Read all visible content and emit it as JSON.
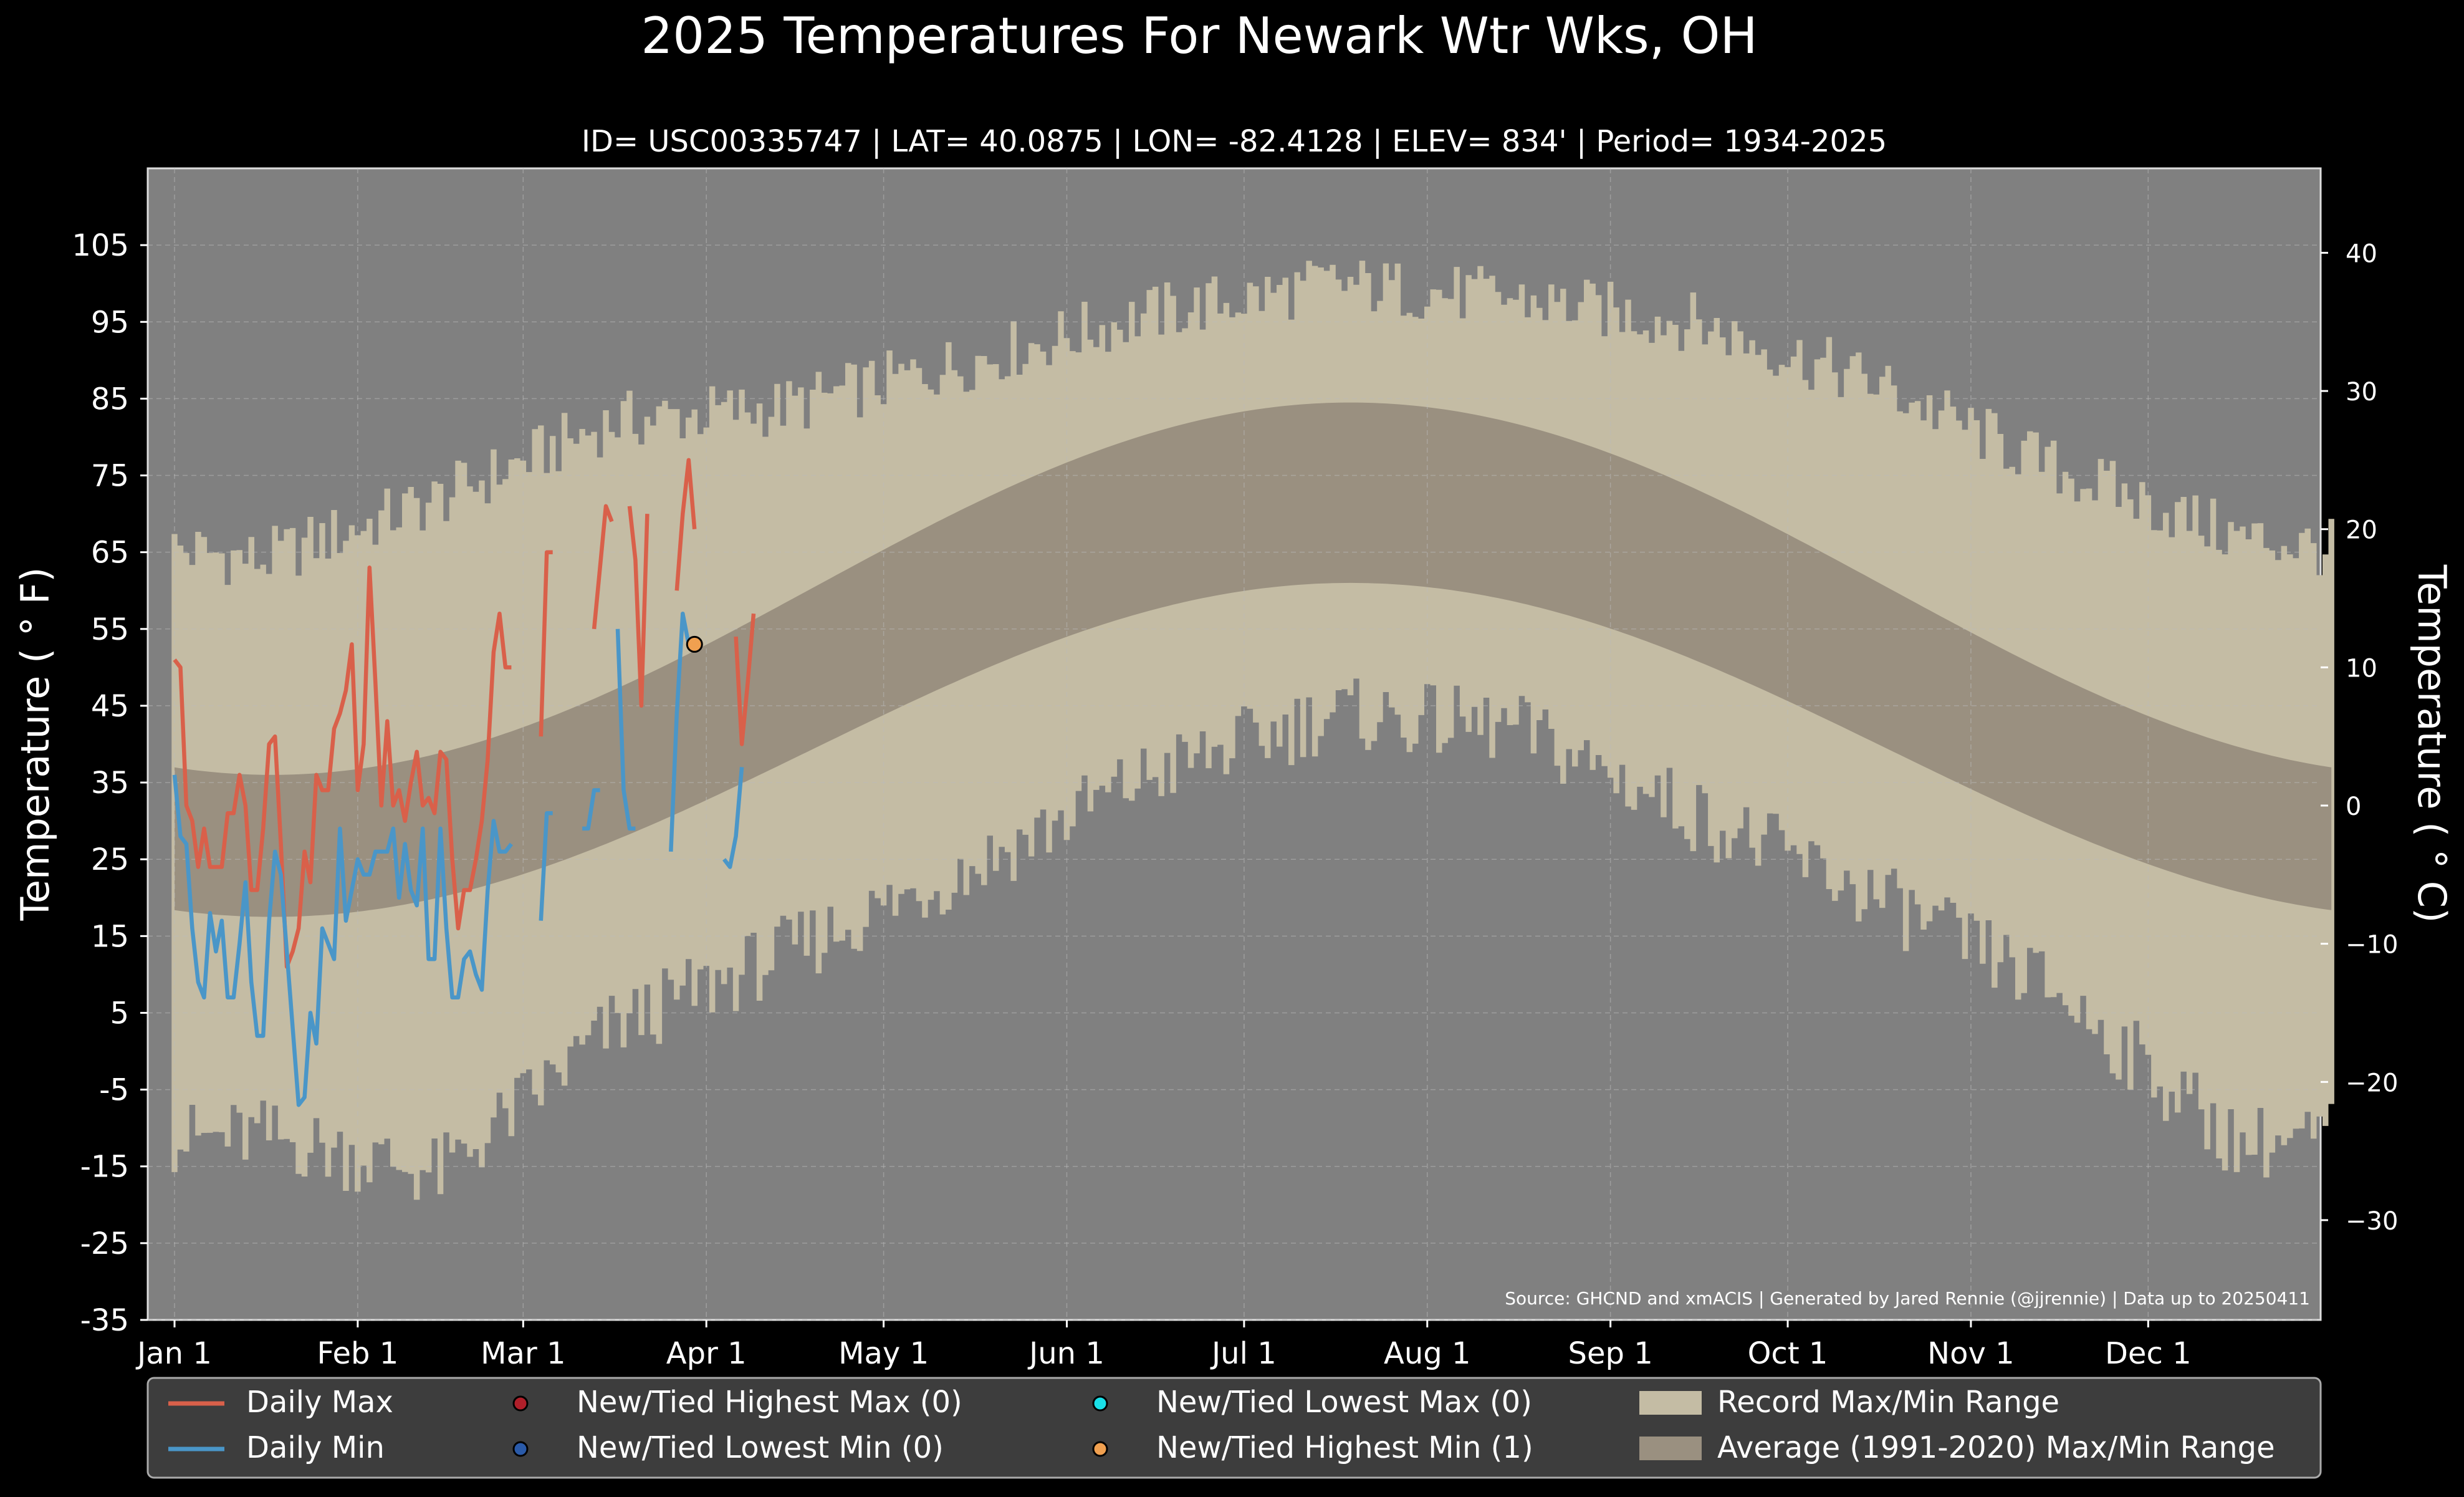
{
  "chart_data": {
    "type": "area",
    "title": "2025 Temperatures For Newark Wtr Wks, OH",
    "subtitle": "ID= USC00335747 | LAT= 40.0875 | LON= -82.4128 | ELEV= 834' | Period= 1934-2025",
    "ylabel": "Temperature ($^\\circ$F)",
    "ylabel_display": "Temperature ( ° F)",
    "ylabel_right": "Temperature ( ° C)",
    "source": "Source: GHCND and xmACIS | Generated by Jared Rennie (@jjrennie) | Data up to 20250411",
    "ylim": [
      -35,
      115
    ],
    "y_ticks": [
      "-35",
      "-25",
      "-15",
      "-5",
      "5",
      "15",
      "25",
      "35",
      "45",
      "55",
      "65",
      "75",
      "85",
      "95",
      "105"
    ],
    "y_ticks_right": [
      "−30",
      "−20",
      "−10",
      "0",
      "10",
      "20",
      "30",
      "40"
    ],
    "x_ticks": [
      "Jan 1",
      "Feb 1",
      "Mar 1",
      "Apr 1",
      "May 1",
      "Jun 1",
      "Jul 1",
      "Aug 1",
      "Sep 1",
      "Oct 1",
      "Nov 1",
      "Dec 1"
    ],
    "grid": true,
    "legend_position": "bottom",
    "legend": [
      "Daily Max",
      "Daily Min",
      "New/Tied Highest Max (0)",
      "New/Tied Lowest Min (0)",
      "New/Tied Lowest Max (0)",
      "New/Tied Highest Min (1)",
      "Record Max/Min Range",
      "Average (1991-2020) Max/Min Range"
    ],
    "colors": {
      "background": "#000000",
      "plot_background": "#808080",
      "record_range": "#c4bca4",
      "normal_range": "#9a9080",
      "daily_max": "#d9604a",
      "daily_min": "#4a96c8",
      "highest_max_marker": "#b01f2a",
      "lowest_min_marker": "#2a5aa8",
      "lowest_max_marker": "#19e0e8",
      "highest_min_marker": "#f0a050"
    },
    "record_range_monthly": [
      {
        "month": "Jan",
        "record_high": 64,
        "record_low": -11
      },
      {
        "month": "Feb",
        "record_high": 72,
        "record_low": -16
      },
      {
        "month": "Mar",
        "record_high": 82,
        "record_low": 3
      },
      {
        "month": "Apr",
        "record_high": 84,
        "record_low": 13
      },
      {
        "month": "May",
        "record_high": 90,
        "record_low": 24
      },
      {
        "month": "Jun",
        "record_high": 96,
        "record_low": 36
      },
      {
        "month": "Jul",
        "record_high": 100,
        "record_low": 44
      },
      {
        "month": "Aug",
        "record_high": 98,
        "record_low": 42
      },
      {
        "month": "Sep",
        "record_high": 95,
        "record_low": 31
      },
      {
        "month": "Oct",
        "record_high": 87,
        "record_low": 20
      },
      {
        "month": "Nov",
        "record_high": 76,
        "record_low": 8
      },
      {
        "month": "Dec",
        "record_high": 67,
        "record_low": -12
      }
    ],
    "normal_range": {
      "max_low": 36,
      "max_high": 84.5,
      "min_low": 17.5,
      "min_high": 61,
      "coldest_day": 25,
      "warmest_day": 200
    },
    "series": [
      {
        "name": "Daily Max",
        "points": [
          [
            1,
            51
          ],
          [
            2,
            50
          ],
          [
            3,
            32
          ],
          [
            4,
            30
          ],
          [
            5,
            24
          ],
          [
            6,
            29
          ],
          [
            7,
            24
          ],
          [
            8,
            24
          ],
          [
            9,
            24
          ],
          [
            10,
            31
          ],
          [
            11,
            31
          ],
          [
            12,
            36
          ],
          [
            13,
            32
          ],
          [
            14,
            21
          ],
          [
            15,
            21
          ],
          [
            16,
            29
          ],
          [
            17,
            40
          ],
          [
            18,
            41
          ],
          [
            19,
            27
          ],
          [
            20,
            11
          ],
          [
            21,
            13
          ],
          [
            22,
            16
          ],
          [
            23,
            26
          ],
          [
            24,
            22
          ],
          [
            25,
            36
          ],
          [
            26,
            34
          ],
          [
            27,
            34
          ],
          [
            28,
            42
          ],
          [
            29,
            44
          ],
          [
            30,
            47
          ],
          [
            31,
            53
          ],
          [
            32,
            34
          ],
          [
            33,
            40
          ],
          [
            34,
            63
          ],
          [
            35,
            48
          ],
          [
            36,
            32
          ],
          [
            37,
            43
          ],
          [
            38,
            32
          ],
          [
            39,
            34
          ],
          [
            40,
            30
          ],
          [
            41,
            35
          ],
          [
            42,
            39
          ],
          [
            43,
            32
          ],
          [
            44,
            33
          ],
          [
            45,
            31
          ],
          [
            46,
            39
          ],
          [
            47,
            38
          ],
          [
            48,
            25
          ],
          [
            49,
            16
          ],
          [
            50,
            21
          ],
          [
            51,
            21
          ],
          [
            52,
            25
          ],
          [
            53,
            30
          ],
          [
            54,
            38
          ],
          [
            55,
            52
          ],
          [
            56,
            57
          ],
          [
            57,
            50
          ],
          [
            58,
            50
          ],
          [
            63,
            41
          ],
          [
            64,
            65
          ],
          [
            65,
            65
          ],
          [
            72,
            55
          ],
          [
            73,
            63
          ],
          [
            74,
            71
          ],
          [
            75,
            69
          ],
          [
            78,
            71
          ],
          [
            79,
            64
          ],
          [
            80,
            45
          ],
          [
            81,
            70
          ],
          [
            86,
            60
          ],
          [
            87,
            70
          ],
          [
            88,
            77
          ],
          [
            89,
            68
          ],
          [
            96,
            54
          ],
          [
            97,
            40
          ],
          [
            98,
            48
          ],
          [
            99,
            57
          ]
        ]
      },
      {
        "name": "Daily Min",
        "points": [
          [
            1,
            36
          ],
          [
            2,
            28
          ],
          [
            3,
            27
          ],
          [
            4,
            16
          ],
          [
            5,
            9
          ],
          [
            6,
            7
          ],
          [
            7,
            18
          ],
          [
            8,
            13
          ],
          [
            9,
            17
          ],
          [
            10,
            7
          ],
          [
            11,
            7
          ],
          [
            12,
            14
          ],
          [
            13,
            22
          ],
          [
            14,
            9
          ],
          [
            15,
            2
          ],
          [
            16,
            2
          ],
          [
            17,
            17
          ],
          [
            18,
            26
          ],
          [
            19,
            23
          ],
          [
            20,
            13
          ],
          [
            21,
            3
          ],
          [
            22,
            -7
          ],
          [
            23,
            -6
          ],
          [
            24,
            5
          ],
          [
            25,
            1
          ],
          [
            26,
            16
          ],
          [
            27,
            14
          ],
          [
            28,
            12
          ],
          [
            29,
            29
          ],
          [
            30,
            17
          ],
          [
            31,
            21
          ],
          [
            32,
            25
          ],
          [
            33,
            23
          ],
          [
            34,
            23
          ],
          [
            35,
            26
          ],
          [
            36,
            26
          ],
          [
            37,
            26
          ],
          [
            38,
            29
          ],
          [
            39,
            20
          ],
          [
            40,
            27
          ],
          [
            41,
            21
          ],
          [
            42,
            19
          ],
          [
            43,
            29
          ],
          [
            44,
            12
          ],
          [
            45,
            12
          ],
          [
            46,
            29
          ],
          [
            47,
            16
          ],
          [
            48,
            7
          ],
          [
            49,
            7
          ],
          [
            50,
            12
          ],
          [
            51,
            13
          ],
          [
            52,
            10
          ],
          [
            53,
            8
          ],
          [
            54,
            21
          ],
          [
            55,
            30
          ],
          [
            56,
            26
          ],
          [
            57,
            26
          ],
          [
            58,
            27
          ],
          [
            63,
            17
          ],
          [
            64,
            31
          ],
          [
            65,
            31
          ],
          [
            70,
            29
          ],
          [
            71,
            29
          ],
          [
            72,
            34
          ],
          [
            73,
            34
          ],
          [
            76,
            55
          ],
          [
            77,
            34
          ],
          [
            78,
            29
          ],
          [
            79,
            29
          ],
          [
            85,
            26
          ],
          [
            86,
            44
          ],
          [
            87,
            57
          ],
          [
            88,
            53
          ],
          [
            94,
            25
          ],
          [
            95,
            24
          ],
          [
            96,
            28
          ],
          [
            97,
            37
          ]
        ]
      }
    ],
    "markers": [
      {
        "name": "New/Tied Highest Min (1)",
        "day": 89,
        "value": 53
      }
    ]
  }
}
